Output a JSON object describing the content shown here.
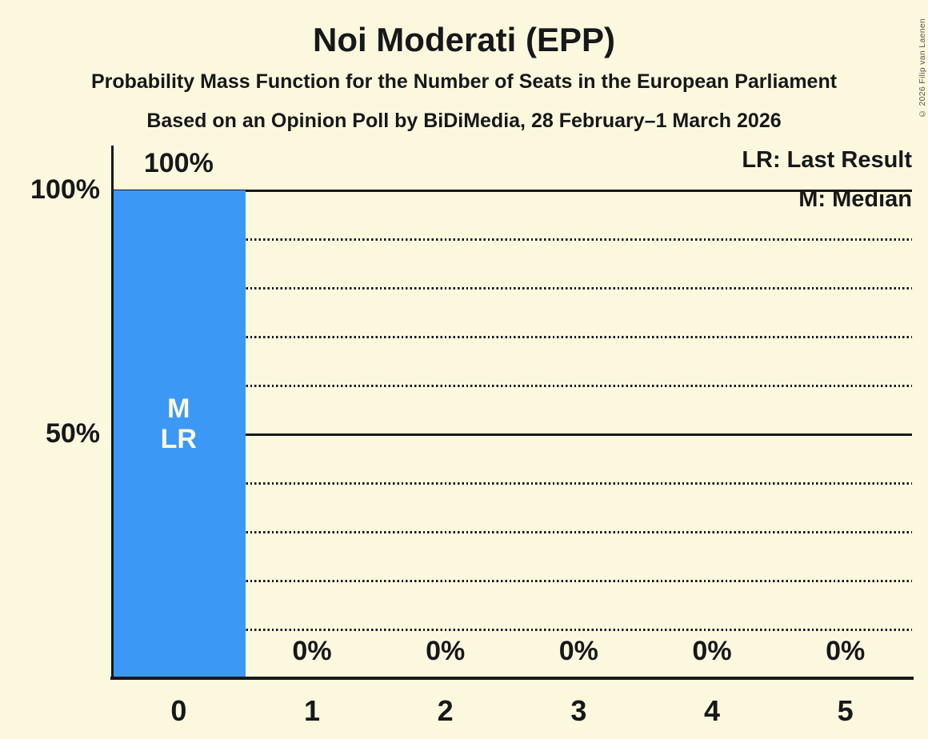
{
  "title": "Noi Moderati (EPP)",
  "subtitle1": "Probability Mass Function for the Number of Seats in the European Parliament",
  "subtitle2": "Based on an Opinion Poll by BiDiMedia, 28 February–1 March 2026",
  "copyright": "© 2026 Filip van Laenen",
  "legend": {
    "lr": "LR: Last Result",
    "m": "M: Median"
  },
  "colors": {
    "background": "#FCF8DE",
    "bar": "#3B99F5",
    "text": "#17181A",
    "in_bar_text": "#FCF8DE"
  },
  "y_axis": {
    "labels": [
      {
        "pct": 100,
        "text": "100%"
      },
      {
        "pct": 50,
        "text": "50%"
      }
    ]
  },
  "chart_data": {
    "type": "bar",
    "title": "Noi Moderati (EPP)",
    "categories": [
      "0",
      "1",
      "2",
      "3",
      "4",
      "5"
    ],
    "values": [
      100,
      0,
      0,
      0,
      0,
      0
    ],
    "value_labels": [
      "100%",
      "0%",
      "0%",
      "0%",
      "0%",
      "0%"
    ],
    "ylim": [
      0,
      100
    ],
    "grid": {
      "step": 10,
      "solid": [
        50,
        100
      ],
      "dotted": [
        10,
        20,
        30,
        40,
        60,
        70,
        80,
        90
      ]
    },
    "annotations": [
      {
        "slot": 0,
        "lines": [
          "M",
          "LR"
        ],
        "meaning": [
          "Median",
          "Last Result"
        ]
      }
    ],
    "legend_position": "top-right"
  }
}
